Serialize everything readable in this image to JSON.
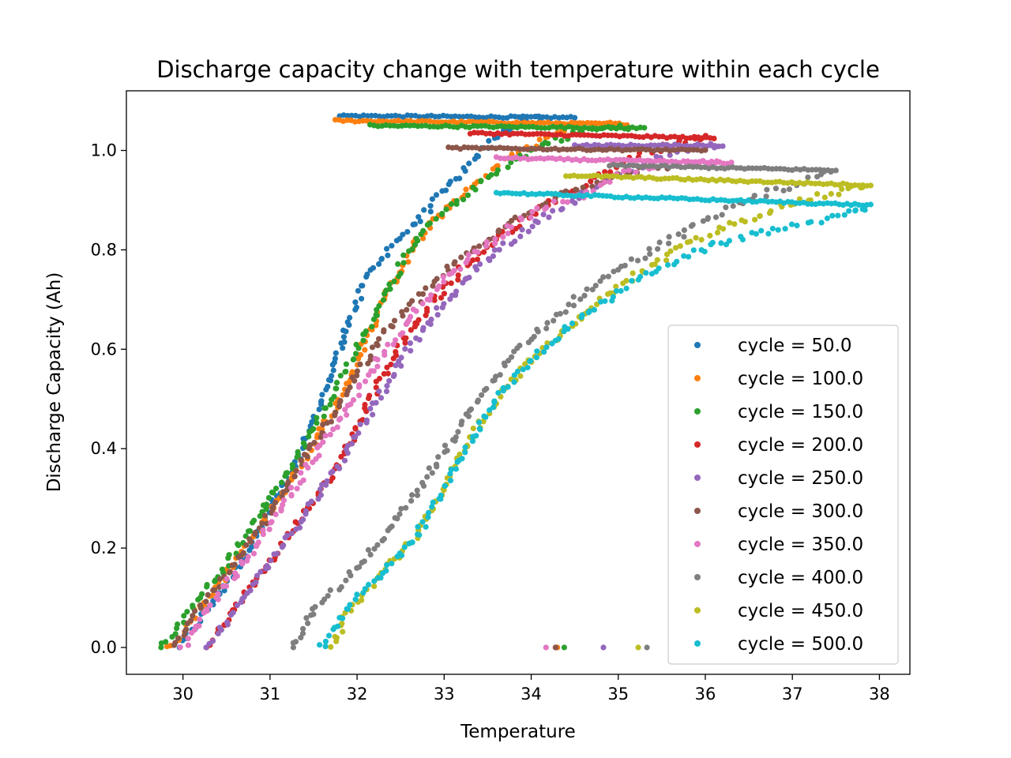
{
  "chart_data": {
    "type": "scatter",
    "title": "Discharge capacity change with temperature within each cycle",
    "xlabel": "Temperature",
    "ylabel": "Discharge Capacity (Ah)",
    "xlim": [
      29.35,
      38.35
    ],
    "ylim": [
      -0.054,
      1.12
    ],
    "xticks": [
      "30",
      "31",
      "32",
      "33",
      "34",
      "35",
      "36",
      "37",
      "38"
    ],
    "yticks": [
      "0.0",
      "0.2",
      "0.4",
      "0.6",
      "0.8",
      "1.0"
    ],
    "grid": false,
    "legend_position": "lower-right",
    "series": [
      {
        "name": "cycle = 50.0",
        "color": "#1f77b4",
        "rise": [
          [
            29.95,
            0.0
          ],
          [
            30.3,
            0.08
          ],
          [
            30.7,
            0.18
          ],
          [
            31.0,
            0.28
          ],
          [
            31.3,
            0.37
          ],
          [
            31.5,
            0.45
          ],
          [
            31.7,
            0.55
          ],
          [
            31.9,
            0.65
          ],
          [
            32.1,
            0.74
          ],
          [
            32.4,
            0.81
          ],
          [
            32.7,
            0.86
          ],
          [
            33.0,
            0.92
          ],
          [
            33.3,
            0.97
          ],
          [
            33.6,
            1.03
          ],
          [
            33.9,
            1.06
          ],
          [
            34.2,
            1.067
          ]
        ],
        "plateau": [
          [
            31.8,
            1.07
          ],
          [
            34.5,
            1.066
          ]
        ],
        "isolated": [
          [
            34.3,
            0.0
          ]
        ]
      },
      {
        "name": "cycle = 100.0",
        "color": "#ff7f0e",
        "rise": [
          [
            29.85,
            0.0
          ],
          [
            30.2,
            0.08
          ],
          [
            30.6,
            0.17
          ],
          [
            31.0,
            0.27
          ],
          [
            31.4,
            0.38
          ],
          [
            31.8,
            0.5
          ],
          [
            32.1,
            0.62
          ],
          [
            32.4,
            0.73
          ],
          [
            32.7,
            0.82
          ],
          [
            33.0,
            0.88
          ],
          [
            33.4,
            0.94
          ],
          [
            33.8,
            0.99
          ],
          [
            34.2,
            1.03
          ],
          [
            34.6,
            1.05
          ],
          [
            35.0,
            1.055
          ]
        ],
        "plateau": [
          [
            31.75,
            1.06
          ],
          [
            35.1,
            1.053
          ]
        ],
        "isolated": [
          [
            34.3,
            0.0
          ]
        ]
      },
      {
        "name": "cycle = 150.0",
        "color": "#2ca02c",
        "rise": [
          [
            29.75,
            0.0
          ],
          [
            30.1,
            0.08
          ],
          [
            30.5,
            0.17
          ],
          [
            30.9,
            0.27
          ],
          [
            31.3,
            0.38
          ],
          [
            31.7,
            0.5
          ],
          [
            32.0,
            0.6
          ],
          [
            32.3,
            0.7
          ],
          [
            32.6,
            0.8
          ],
          [
            32.9,
            0.86
          ],
          [
            33.3,
            0.92
          ],
          [
            33.7,
            0.97
          ],
          [
            34.1,
            1.01
          ],
          [
            34.6,
            1.04
          ],
          [
            35.2,
            1.047
          ]
        ],
        "plateau": [
          [
            32.15,
            1.05
          ],
          [
            35.3,
            1.045
          ]
        ],
        "isolated": [
          [
            34.38,
            0.0
          ]
        ]
      },
      {
        "name": "cycle = 200.0",
        "color": "#d62728",
        "rise": [
          [
            30.3,
            0.0
          ],
          [
            30.6,
            0.08
          ],
          [
            31.0,
            0.17
          ],
          [
            31.4,
            0.27
          ],
          [
            31.8,
            0.37
          ],
          [
            32.1,
            0.48
          ],
          [
            32.4,
            0.58
          ],
          [
            32.8,
            0.68
          ],
          [
            33.2,
            0.76
          ],
          [
            33.6,
            0.82
          ],
          [
            34.0,
            0.87
          ],
          [
            34.4,
            0.91
          ],
          [
            34.8,
            0.95
          ],
          [
            35.2,
            0.99
          ],
          [
            35.8,
            1.02
          ],
          [
            36.1,
            1.025
          ]
        ],
        "plateau": [
          [
            33.3,
            1.035
          ],
          [
            36.1,
            1.025
          ]
        ],
        "isolated": [
          [
            34.28,
            0.0
          ]
        ]
      },
      {
        "name": "cycle = 250.0",
        "color": "#9467bd",
        "rise": [
          [
            30.3,
            0.0
          ],
          [
            30.6,
            0.08
          ],
          [
            31.0,
            0.17
          ],
          [
            31.4,
            0.27
          ],
          [
            31.8,
            0.37
          ],
          [
            32.15,
            0.47
          ],
          [
            32.5,
            0.58
          ],
          [
            32.9,
            0.67
          ],
          [
            33.3,
            0.75
          ],
          [
            33.7,
            0.81
          ],
          [
            34.1,
            0.86
          ],
          [
            34.5,
            0.9
          ],
          [
            35.0,
            0.95
          ],
          [
            35.5,
            0.99
          ],
          [
            36.0,
            1.01
          ],
          [
            36.2,
            1.01
          ]
        ],
        "plateau": [
          [
            34.5,
            1.01
          ],
          [
            36.2,
            1.01
          ]
        ],
        "isolated": [
          [
            34.83,
            0.0
          ]
        ]
      },
      {
        "name": "cycle = 300.0",
        "color": "#8c564b",
        "rise": [
          [
            29.9,
            0.0
          ],
          [
            30.2,
            0.08
          ],
          [
            30.6,
            0.17
          ],
          [
            31.0,
            0.27
          ],
          [
            31.4,
            0.38
          ],
          [
            31.7,
            0.46
          ],
          [
            32.0,
            0.55
          ],
          [
            32.3,
            0.63
          ],
          [
            32.7,
            0.7
          ],
          [
            33.1,
            0.77
          ],
          [
            33.5,
            0.82
          ],
          [
            33.9,
            0.87
          ],
          [
            34.3,
            0.91
          ],
          [
            34.8,
            0.94
          ],
          [
            35.2,
            0.96
          ],
          [
            35.6,
            0.97
          ]
        ],
        "plateau": [
          [
            33.05,
            1.005
          ],
          [
            36.0,
            1.0
          ]
        ],
        "isolated": [
          [
            34.28,
            0.0
          ]
        ]
      },
      {
        "name": "cycle = 350.0",
        "color": "#e377c2",
        "rise": [
          [
            30.0,
            0.0
          ],
          [
            30.3,
            0.08
          ],
          [
            30.7,
            0.17
          ],
          [
            31.1,
            0.27
          ],
          [
            31.5,
            0.38
          ],
          [
            31.85,
            0.47
          ],
          [
            32.2,
            0.57
          ],
          [
            32.6,
            0.66
          ],
          [
            33.0,
            0.74
          ],
          [
            33.4,
            0.8
          ],
          [
            33.8,
            0.85
          ],
          [
            34.2,
            0.89
          ],
          [
            34.6,
            0.91
          ],
          [
            35.0,
            0.95
          ],
          [
            35.5,
            0.97
          ],
          [
            36.2,
            0.975
          ]
        ],
        "plateau": [
          [
            33.6,
            0.985
          ],
          [
            36.3,
            0.975
          ]
        ],
        "isolated": [
          [
            34.17,
            0.0
          ]
        ]
      },
      {
        "name": "cycle = 400.0",
        "color": "#7f7f7f",
        "rise": [
          [
            31.25,
            0.0
          ],
          [
            31.5,
            0.08
          ],
          [
            31.9,
            0.14
          ],
          [
            32.2,
            0.2
          ],
          [
            32.5,
            0.27
          ],
          [
            32.8,
            0.34
          ],
          [
            33.1,
            0.42
          ],
          [
            33.4,
            0.5
          ],
          [
            33.7,
            0.57
          ],
          [
            34.1,
            0.64
          ],
          [
            34.5,
            0.7
          ],
          [
            35.0,
            0.76
          ],
          [
            35.5,
            0.81
          ],
          [
            36.0,
            0.86
          ],
          [
            36.6,
            0.91
          ],
          [
            37.2,
            0.94
          ],
          [
            37.5,
            0.96
          ]
        ],
        "plateau": [
          [
            34.9,
            0.97
          ],
          [
            37.5,
            0.96
          ]
        ],
        "isolated": [
          [
            35.33,
            0.0
          ]
        ]
      },
      {
        "name": "cycle = 450.0",
        "color": "#bcbd22",
        "rise": [
          [
            31.72,
            0.0
          ],
          [
            31.9,
            0.08
          ],
          [
            32.3,
            0.15
          ],
          [
            32.7,
            0.23
          ],
          [
            33.0,
            0.32
          ],
          [
            33.3,
            0.42
          ],
          [
            33.6,
            0.5
          ],
          [
            34.0,
            0.58
          ],
          [
            34.4,
            0.64
          ],
          [
            34.8,
            0.7
          ],
          [
            35.3,
            0.76
          ],
          [
            35.8,
            0.81
          ],
          [
            36.3,
            0.85
          ],
          [
            36.9,
            0.89
          ],
          [
            37.5,
            0.915
          ],
          [
            37.9,
            0.93
          ]
        ],
        "plateau": [
          [
            34.4,
            0.95
          ],
          [
            37.9,
            0.93
          ]
        ],
        "isolated": [
          [
            35.23,
            0.0
          ]
        ]
      },
      {
        "name": "cycle = 500.0",
        "color": "#17becf",
        "rise": [
          [
            31.6,
            0.0
          ],
          [
            31.9,
            0.08
          ],
          [
            32.3,
            0.15
          ],
          [
            32.7,
            0.23
          ],
          [
            33.0,
            0.32
          ],
          [
            33.3,
            0.41
          ],
          [
            33.6,
            0.5
          ],
          [
            34.0,
            0.58
          ],
          [
            34.4,
            0.64
          ],
          [
            34.8,
            0.69
          ],
          [
            35.3,
            0.75
          ],
          [
            35.8,
            0.79
          ],
          [
            36.3,
            0.82
          ],
          [
            36.8,
            0.84
          ],
          [
            37.3,
            0.86
          ],
          [
            37.7,
            0.875
          ],
          [
            37.9,
            0.89
          ]
        ],
        "plateau": [
          [
            33.6,
            0.915
          ],
          [
            37.9,
            0.89
          ]
        ],
        "isolated": []
      }
    ]
  }
}
